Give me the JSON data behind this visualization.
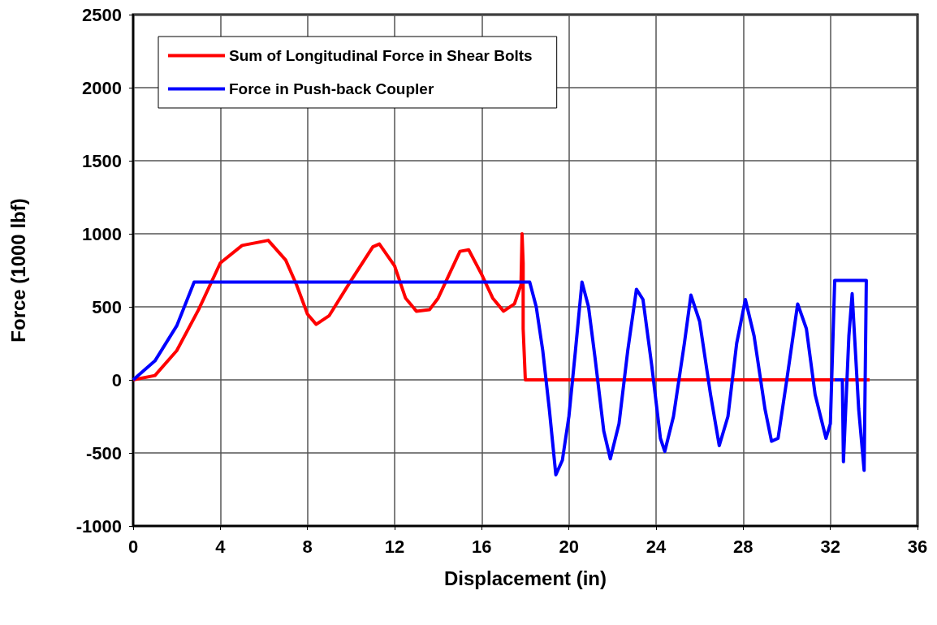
{
  "chart_data": {
    "type": "line",
    "xlabel": "Displacement (in)",
    "ylabel": "Force (1000 lbf)",
    "xlim": [
      0,
      36
    ],
    "xticks": [
      0,
      4,
      8,
      12,
      16,
      20,
      24,
      28,
      32,
      36
    ],
    "ylim": [
      -1000,
      2500
    ],
    "yticks": [
      -1000,
      -500,
      0,
      500,
      1000,
      1500,
      2000,
      2500
    ],
    "grid": true,
    "legend": "top left",
    "marker": "none",
    "line_style": "solid",
    "series": [
      {
        "name": "Sum of Longitudinal Force in Shear Bolts",
        "color": "#ff0000",
        "x": [
          0,
          1,
          2,
          3,
          4,
          5,
          6.2,
          7,
          7.5,
          8,
          8.4,
          9,
          10,
          11,
          11.3,
          12,
          12.5,
          13,
          13.6,
          14,
          15,
          15.4,
          16,
          16.5,
          17,
          17.5,
          17.8,
          17.85,
          17.9,
          17.9,
          18,
          33.8
        ],
        "values": [
          0,
          30,
          200,
          480,
          800,
          920,
          955,
          820,
          650,
          450,
          380,
          440,
          680,
          910,
          930,
          780,
          560,
          470,
          480,
          560,
          880,
          890,
          720,
          560,
          470,
          520,
          650,
          1000,
          800,
          350,
          0,
          0
        ]
      },
      {
        "name": "Force in Push-back Coupler",
        "color": "#0000ff",
        "x": [
          0,
          1,
          2,
          2.8,
          18.2,
          18.5,
          18.8,
          19.1,
          19.4,
          19.7,
          20,
          20.3,
          20.6,
          20.9,
          21.2,
          21.6,
          21.9,
          22.3,
          22.7,
          23.1,
          23.4,
          23.8,
          24.2,
          24.4,
          24.8,
          25.3,
          25.6,
          26,
          26.5,
          26.9,
          27.3,
          27.7,
          28.1,
          28.5,
          29,
          29.3,
          29.6,
          30,
          30.5,
          30.9,
          31.3,
          31.8,
          32,
          32.2,
          33.65,
          33.55,
          33.3,
          33.0,
          32.85,
          32.6,
          32.55,
          32.2
        ],
        "values": [
          0,
          130,
          370,
          670,
          670,
          500,
          200,
          -200,
          -650,
          -550,
          -250,
          200,
          670,
          500,
          150,
          -350,
          -540,
          -300,
          200,
          620,
          550,
          100,
          -400,
          -490,
          -250,
          250,
          580,
          400,
          -100,
          -450,
          -250,
          250,
          550,
          300,
          -200,
          -420,
          -400,
          0,
          520,
          350,
          -100,
          -400,
          -300,
          680,
          680,
          -620,
          -200,
          590,
          300,
          -560,
          0,
          0
        ]
      }
    ]
  }
}
